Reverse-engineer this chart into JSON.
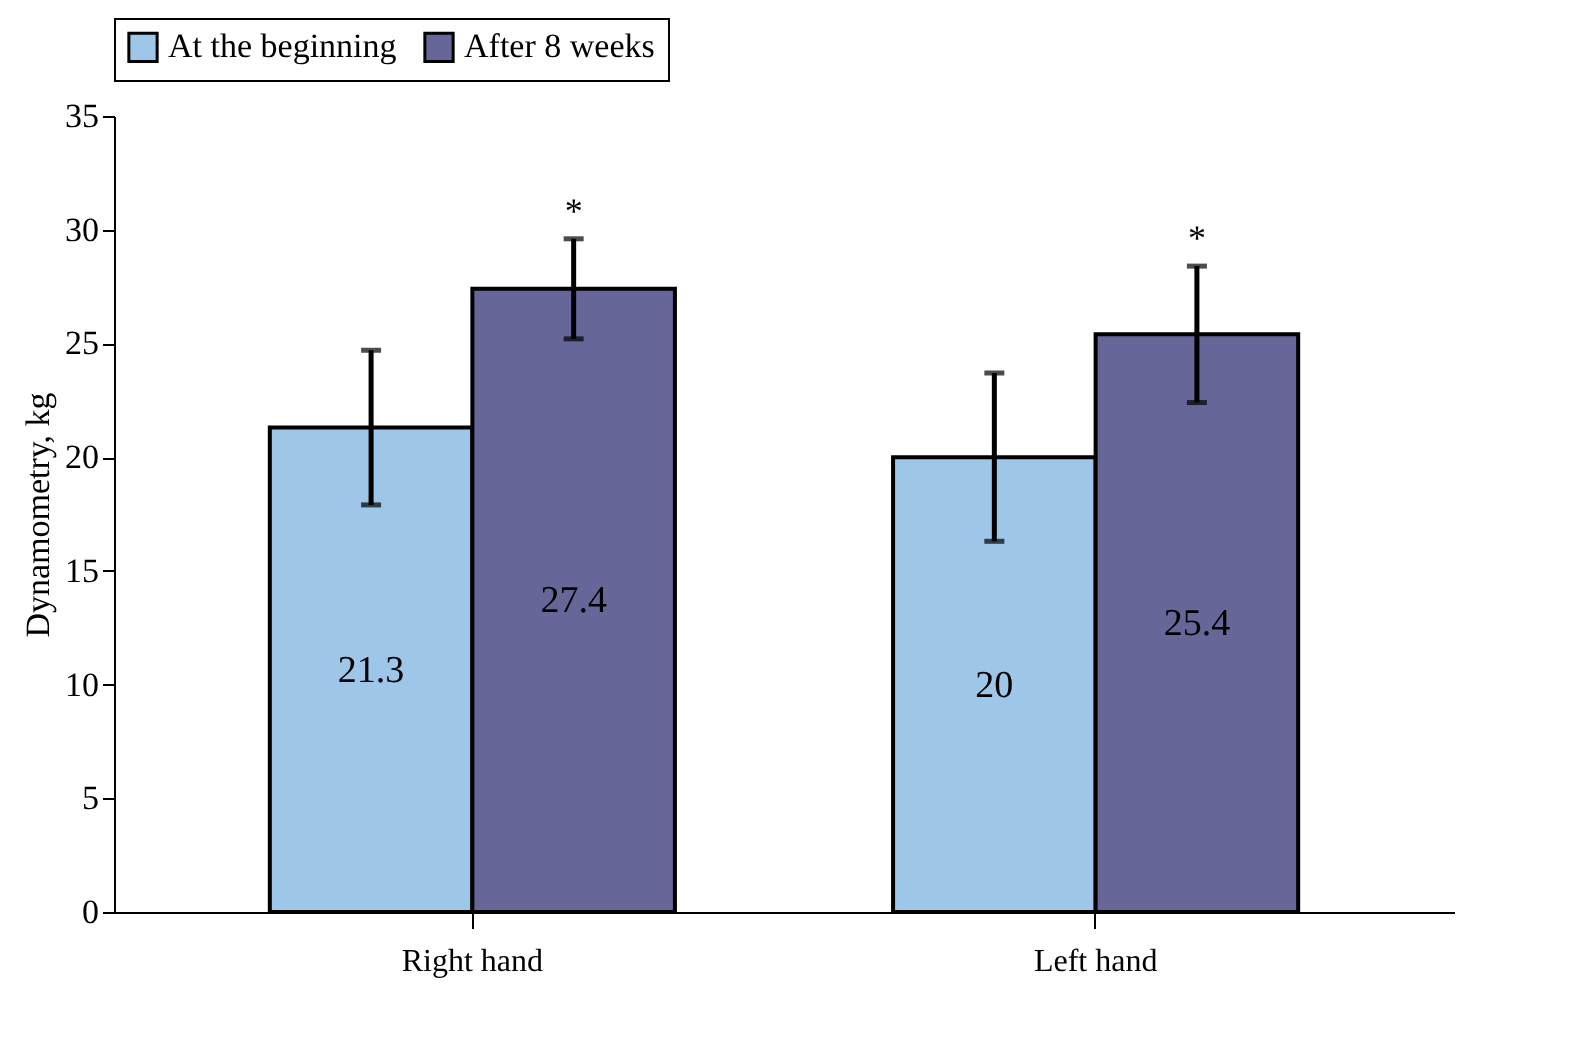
{
  "chart_data": {
    "type": "bar",
    "ylabel": "Dynamometry, kg",
    "categories": [
      "Right hand",
      "Left hand"
    ],
    "series": [
      {
        "name": "At the beginning",
        "color": "#9dc6e8",
        "values": [
          21.3,
          20
        ],
        "errors": [
          3.4,
          3.7
        ]
      },
      {
        "name": "After 8 weeks",
        "color": "#666699",
        "values": [
          27.4,
          25.4
        ],
        "errors": [
          2.2,
          3.0
        ]
      }
    ],
    "ylim": [
      0,
      35
    ],
    "yticks": [
      0,
      5,
      10,
      15,
      20,
      25,
      30,
      35
    ],
    "data_labels": true,
    "legend": "top",
    "grid": false,
    "annotations": [
      "*",
      "*"
    ]
  }
}
